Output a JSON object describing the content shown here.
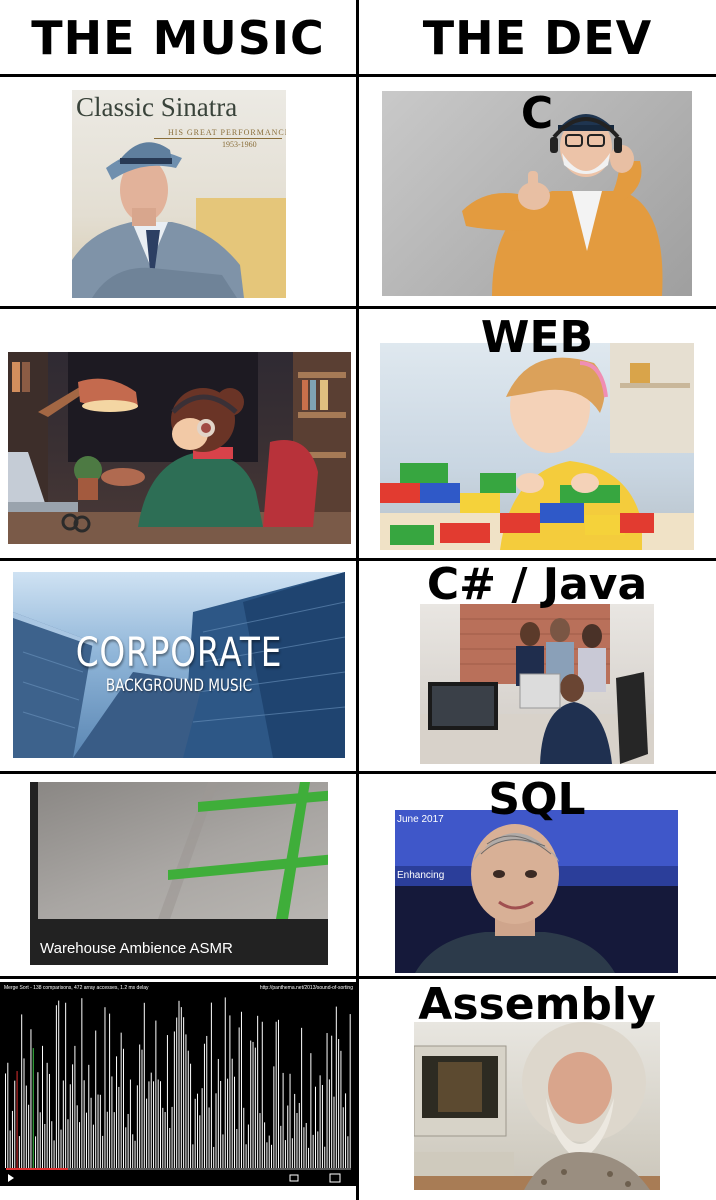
{
  "headers": {
    "left": "THE MUSIC",
    "right": "THE DEV"
  },
  "music": {
    "sinatra": {
      "title": "Classic Sinatra",
      "subtitle": "HIS GREAT PERFORMANCES",
      "years": "1953-1960"
    },
    "corporate": {
      "title": "CORPORATE",
      "subtitle": "BACKGROUND MUSIC"
    },
    "warehouse": {
      "caption": "Warehouse Ambience ASMR"
    },
    "merge_sort": {
      "meta": "Merge Sort - 138 comparisons, 472 array accesses, 1.2 ms delay",
      "url": "http://panthema.net/2013/sound-of-sorting",
      "progress": 0.18
    }
  },
  "dev": {
    "labels": [
      "C",
      "WEB",
      "C# / Java",
      "SQL",
      "Assembly"
    ],
    "sophia": {
      "date": "June 2017",
      "text": "Enhancing"
    }
  },
  "colors": {
    "background": "#ffffff",
    "grid": "#000000",
    "corporate_sky": "#8fb5d8",
    "sophia_screen": "#3a52b8",
    "warehouse_tape": "#3fae3a"
  }
}
